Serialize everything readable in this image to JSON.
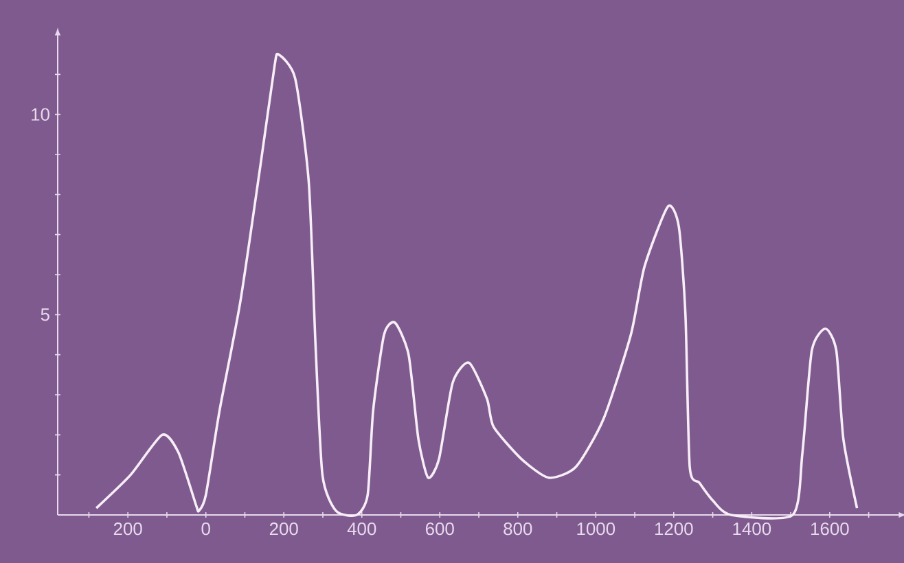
{
  "chart_data": {
    "type": "line",
    "x": [
      -281,
      -193,
      -112,
      -70,
      -25,
      -18,
      0,
      35,
      88,
      141,
      176,
      186,
      229,
      264,
      281,
      299,
      334,
      387,
      415,
      429,
      457,
      485,
      520,
      545,
      570,
      598,
      633,
      675,
      721,
      738,
      809,
      879,
      949,
      1020,
      1090,
      1125,
      1185,
      1213,
      1230,
      1241,
      1266,
      1301,
      1347,
      1505,
      1530,
      1554,
      1589,
      1617,
      1635,
      1670
    ],
    "values": [
      0.17,
      1.0,
      2.0,
      1.55,
      0.24,
      0.1,
      0.5,
      2.6,
      5.3,
      8.8,
      11.2,
      11.5,
      10.9,
      8.3,
      4.3,
      1.0,
      0.1,
      0,
      0.5,
      2.6,
      4.5,
      4.8,
      4.0,
      1.9,
      0.93,
      1.4,
      3.3,
      3.8,
      2.9,
      2.2,
      1.4,
      0.93,
      1.2,
      2.4,
      4.5,
      6.2,
      7.7,
      7.2,
      5.0,
      1.2,
      0.8,
      0.35,
      0,
      0,
      1.55,
      4.1,
      4.65,
      4.1,
      1.9,
      0.17
    ],
    "color": "#f7eef7",
    "xlim": [
      -380,
      1780
    ],
    "ylim": [
      0,
      12
    ],
    "xticks": [
      {
        "value": -300,
        "label": null
      },
      {
        "value": -200,
        "label": "200"
      },
      {
        "value": -100,
        "label": null
      },
      0,
      {
        "value": 100,
        "label": null
      },
      200,
      {
        "value": 300,
        "label": null
      },
      400,
      {
        "value": 500,
        "label": null
      },
      600,
      {
        "value": 700,
        "label": null
      },
      800,
      {
        "value": 900,
        "label": null
      },
      1000,
      {
        "value": 1100,
        "label": null
      },
      1200,
      {
        "value": 1300,
        "label": null
      },
      1400,
      {
        "value": 1500,
        "label": null
      },
      1600,
      {
        "value": 1700,
        "label": null
      }
    ],
    "yticks": [
      {
        "value": 1,
        "label": null
      },
      {
        "value": 2,
        "label": null
      },
      {
        "value": 3,
        "label": null
      },
      {
        "value": 4,
        "label": null
      },
      5,
      {
        "value": 6,
        "label": null
      },
      {
        "value": 7,
        "label": null
      },
      {
        "value": 8,
        "label": null
      },
      {
        "value": 9,
        "label": null
      },
      10,
      {
        "value": 11,
        "label": null
      }
    ],
    "grid": false,
    "marker": "none",
    "line_style": "solid"
  }
}
